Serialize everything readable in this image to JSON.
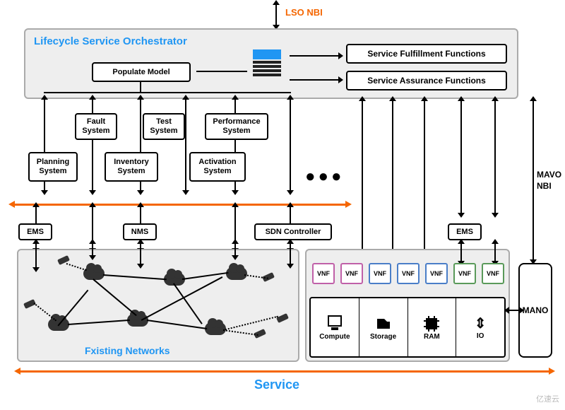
{
  "top_label": "LSO NBI",
  "lso": {
    "title": "Lifecycle Service Orchestrator",
    "populate": "Populate Model",
    "fulfill": "Service Fulfillment Functions",
    "assure": "Service Assurance Functions"
  },
  "systems": {
    "fault": "Fault\nSystem",
    "test": "Test\nSystem",
    "perf": "Performance\nSystem",
    "planning": "Planning\nSystem",
    "inventory": "Inventory\nSystem",
    "activation": "Activation\nSystem"
  },
  "mgmt": {
    "ems": "EMS",
    "nms": "NMS",
    "sdn": "SDN Controller",
    "ems2": "EMS"
  },
  "net_title": "Fxisting Networks",
  "vnfs": [
    "VNF",
    "VNF",
    "VNF",
    "VNF",
    "VNF",
    "VNF",
    "VNF"
  ],
  "vnf_colors": [
    "#c060a8",
    "#c060a8",
    "#4a7ec8",
    "#4a7ec8",
    "#4a7ec8",
    "#5a9a5a",
    "#5a9a5a"
  ],
  "res": {
    "compute": "Compute",
    "storage": "Storage",
    "ram": "RAM",
    "io": "IO"
  },
  "mano": "MANO",
  "mavo": "MAVO\nNBI",
  "svc": "Service",
  "colors": {
    "orange": "#f56600",
    "blue": "#2096f3",
    "panel": "#eeeeee",
    "border": "#aaaaaa"
  },
  "wm": "亿速云"
}
